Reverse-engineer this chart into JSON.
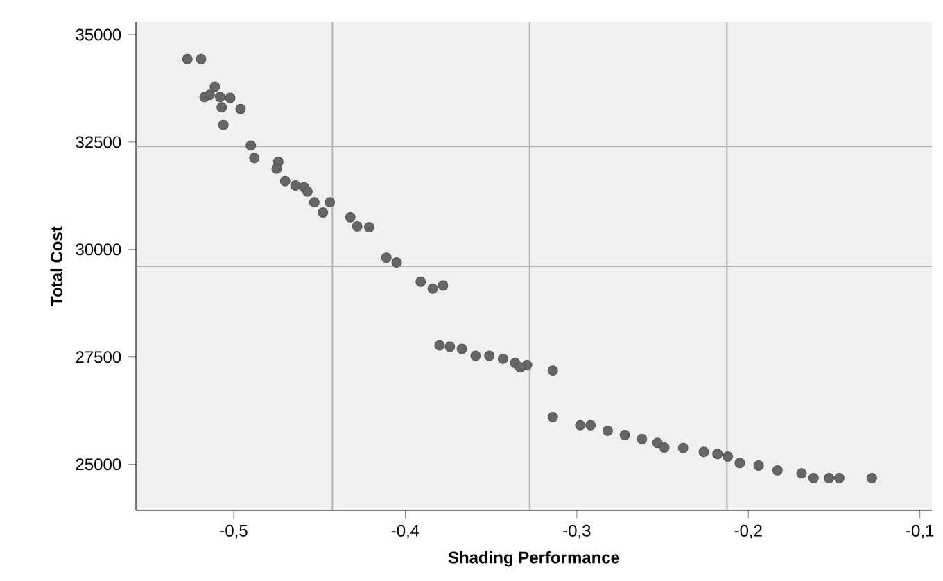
{
  "chart_data": {
    "type": "scatter",
    "xlabel": "Shading Performance",
    "ylabel": "Total Cost",
    "xlim": [
      -0.557,
      -0.093
    ],
    "ylim": [
      23930,
      35290
    ],
    "xticks": [
      {
        "value": -0.5,
        "label": "-0,5"
      },
      {
        "value": -0.4,
        "label": "-0,4"
      },
      {
        "value": -0.3,
        "label": "-0,3"
      },
      {
        "value": -0.2,
        "label": "-0,2"
      },
      {
        "value": -0.1,
        "label": "-0,1"
      }
    ],
    "yticks": [
      25000,
      27500,
      30000,
      32500,
      35000
    ],
    "marker": "circle",
    "grid": false,
    "ref_lines": [
      {
        "axis": "x",
        "value": -0.4425,
        "color": "#b4b4b4"
      },
      {
        "axis": "x",
        "value": -0.3275,
        "color": "#b4b4b4"
      },
      {
        "axis": "x",
        "value": -0.2125,
        "color": "#b4b4b4"
      },
      {
        "axis": "y",
        "value": 32400,
        "color": "#b4b4b4"
      },
      {
        "axis": "y",
        "value": 29610,
        "color": "#b4b4b4"
      }
    ],
    "series": [
      {
        "color": "#666666",
        "x": [
          -0.527,
          -0.519,
          -0.517,
          -0.511,
          -0.514,
          -0.508,
          -0.502,
          -0.507,
          -0.496,
          -0.506,
          -0.49,
          -0.488,
          -0.474,
          -0.475,
          -0.47,
          -0.464,
          -0.459,
          -0.457,
          -0.453,
          -0.448,
          -0.444,
          -0.432,
          -0.428,
          -0.421,
          -0.411,
          -0.405,
          -0.391,
          -0.384,
          -0.378,
          -0.38,
          -0.374,
          -0.367,
          -0.359,
          -0.351,
          -0.343,
          -0.336,
          -0.329,
          -0.333,
          -0.314,
          -0.314,
          -0.298,
          -0.292,
          -0.282,
          -0.272,
          -0.262,
          -0.253,
          -0.249,
          -0.238,
          -0.226,
          -0.218,
          -0.212,
          -0.205,
          -0.194,
          -0.183,
          -0.169,
          -0.162,
          -0.153,
          -0.147,
          -0.128
        ],
        "values": [
          34430,
          34430,
          33550,
          33790,
          33600,
          33550,
          33530,
          33310,
          33270,
          32900,
          32420,
          32130,
          32040,
          31880,
          31590,
          31490,
          31450,
          31350,
          31100,
          30860,
          31100,
          30750,
          30540,
          30520,
          29810,
          29700,
          29250,
          29090,
          29160,
          27770,
          27740,
          27690,
          27530,
          27530,
          27460,
          27360,
          27310,
          27260,
          27180,
          26100,
          25910,
          25910,
          25780,
          25680,
          25590,
          25500,
          25390,
          25380,
          25290,
          25240,
          25180,
          25030,
          24970,
          24860,
          24790,
          24680,
          24680,
          24680,
          24680
        ]
      }
    ]
  }
}
